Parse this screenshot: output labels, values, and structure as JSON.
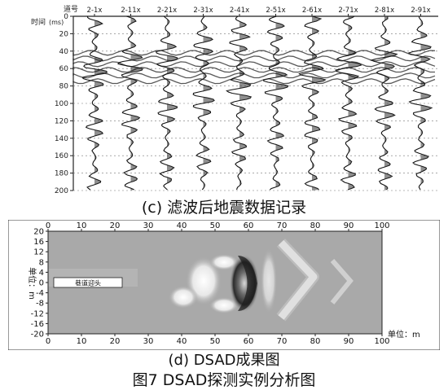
{
  "panel_c": {
    "caption": "(c) 滤波后地震数据记录",
    "corner_top": "道号",
    "corner_bottom": "时间",
    "unit": "(ms)",
    "traces": [
      "2-1x",
      "2-11x",
      "2-21x",
      "2-31x",
      "2-41x",
      "2-51x",
      "2-61x",
      "2-71x",
      "2-81x",
      "2-91x"
    ],
    "time_ticks": [
      "0",
      "20",
      "40",
      "60",
      "80",
      "100",
      "120",
      "140",
      "160",
      "180",
      "200"
    ]
  },
  "panel_d": {
    "caption": "(d) DSAD成果图",
    "x_ticks": [
      "0",
      "10",
      "20",
      "30",
      "40",
      "50",
      "60",
      "70",
      "80",
      "90",
      "100"
    ],
    "y_ticks": [
      "20",
      "16",
      "12",
      "8",
      "4",
      "0",
      "-4",
      "-8",
      "-12",
      "-16",
      "-20"
    ],
    "ylabel": "单位：m",
    "xlabel": "单位：m",
    "annotation": "巷道迎头"
  },
  "figure_caption": "图7 DSAD探测实例分析图",
  "chart_data": [
    {
      "type": "line",
      "title": "(c) 滤波后地震数据记录",
      "xlabel": "道号",
      "ylabel": "时间 (ms)",
      "categories": [
        "2-1x",
        "2-11x",
        "2-21x",
        "2-31x",
        "2-41x",
        "2-51x",
        "2-61x",
        "2-71x",
        "2-81x",
        "2-91x"
      ],
      "ylim": [
        0,
        200
      ],
      "y_ticks": [
        0,
        20,
        40,
        60,
        80,
        100,
        120,
        140,
        160,
        180,
        200
      ],
      "grid": true
    },
    {
      "type": "heatmap",
      "title": "(d) DSAD成果图",
      "xlabel": "单位：m",
      "ylabel": "单位：m",
      "xlim": [
        0,
        100
      ],
      "ylim": [
        -20,
        20
      ],
      "x_ticks": [
        0,
        10,
        20,
        30,
        40,
        50,
        60,
        70,
        80,
        90,
        100
      ],
      "y_ticks": [
        20,
        16,
        12,
        8,
        4,
        0,
        -4,
        -8,
        -12,
        -16,
        -20
      ],
      "annotations": [
        {
          "text": "巷道迎头",
          "x": 10,
          "y": 0
        }
      ]
    }
  ]
}
